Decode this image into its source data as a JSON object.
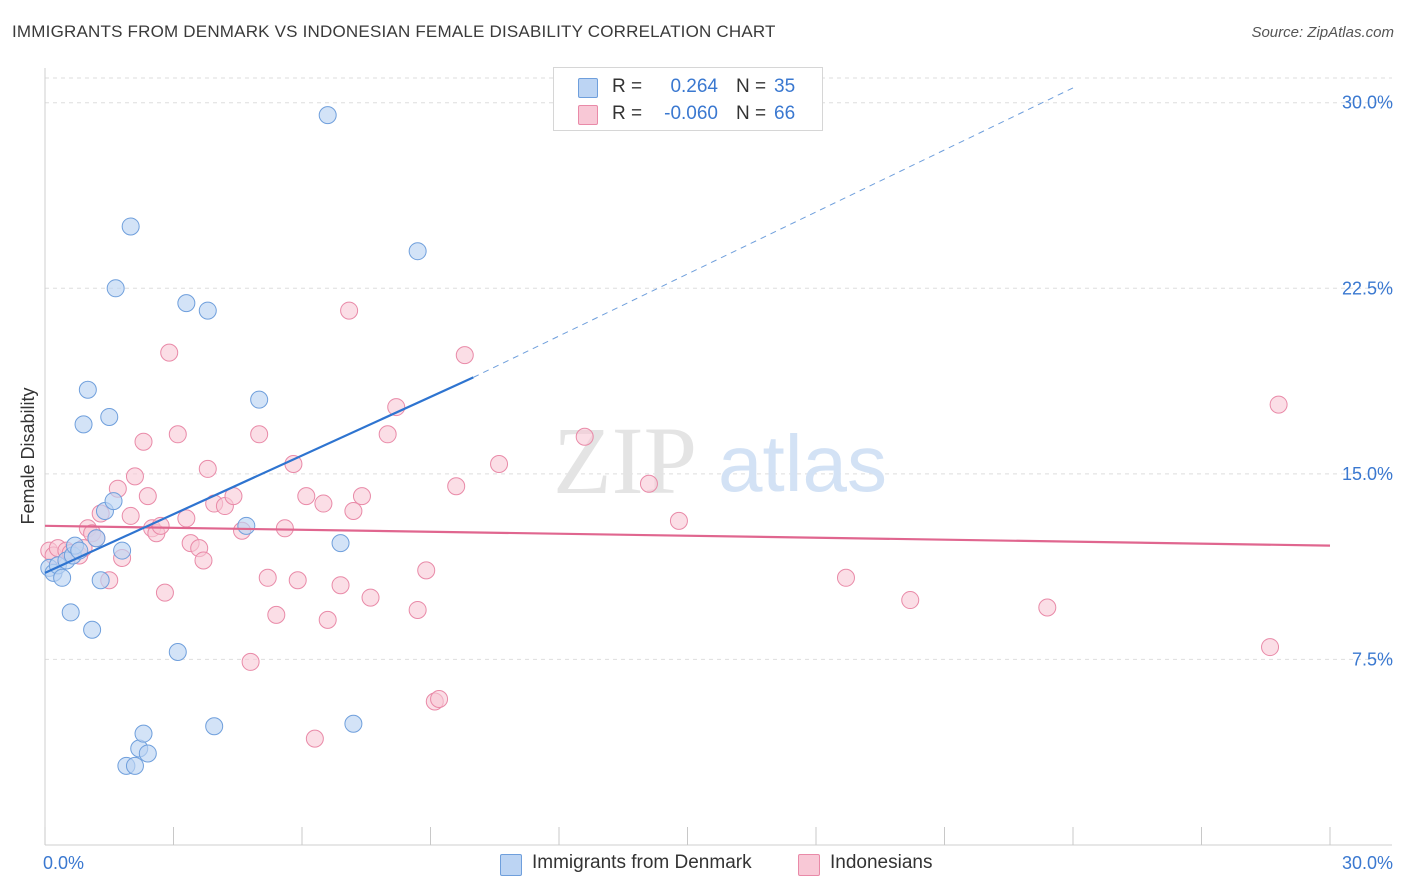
{
  "title": "IMMIGRANTS FROM DENMARK VS INDONESIAN FEMALE DISABILITY CORRELATION CHART",
  "source": "Source: ZipAtlas.com",
  "watermark": {
    "zip": "ZIP",
    "atlas": "atlas"
  },
  "colors": {
    "blue_fill": "#bcd4f3",
    "blue_stroke": "#6f9fdc",
    "blue_line": "#2e74d0",
    "pink_fill": "#f8c8d6",
    "pink_stroke": "#e98aa8",
    "pink_line": "#e0668f",
    "value_text": "#3a78d0",
    "grid": "#dedede"
  },
  "legend": {
    "rows": [
      {
        "r_label": "R =",
        "r_value": "0.264",
        "n_label": "N =",
        "n_value": "35",
        "color": "blue"
      },
      {
        "r_label": "R =",
        "r_value": "-0.060",
        "n_label": "N =",
        "n_value": "66",
        "color": "pink"
      }
    ]
  },
  "bottom_legend": [
    "Immigrants from Denmark",
    "Indonesians"
  ],
  "chart_data": {
    "type": "scatter",
    "title": "IMMIGRANTS FROM DENMARK VS INDONESIAN FEMALE DISABILITY CORRELATION CHART",
    "xlabel": "",
    "ylabel": "Female Disability",
    "xlim": [
      0,
      30
    ],
    "ylim": [
      0,
      31
    ],
    "x_ticks": [
      0,
      3,
      6,
      9,
      12,
      15,
      18,
      21,
      24,
      27,
      30
    ],
    "x_tick_labels": [
      {
        "value": 0,
        "label": "0.0%"
      },
      {
        "value": 30,
        "label": "30.0%"
      }
    ],
    "y_ticks": [
      {
        "value": 7.5,
        "label": "7.5%"
      },
      {
        "value": 15,
        "label": "15.0%"
      },
      {
        "value": 22.5,
        "label": "22.5%"
      },
      {
        "value": 30,
        "label": "30.0%"
      }
    ],
    "grid": true,
    "legend_position": "top-center",
    "series": [
      {
        "name": "Immigrants from Denmark",
        "color": "blue",
        "r": 0.264,
        "n": 35,
        "trend": {
          "x0": 0,
          "y0": 11.0,
          "x1": 10.0,
          "y1": 18.9,
          "dashed_to_x": 24.0,
          "dashed_to_y": 30.6
        },
        "points": [
          [
            0.1,
            11.2
          ],
          [
            0.2,
            11.0
          ],
          [
            0.3,
            11.3
          ],
          [
            0.4,
            10.8
          ],
          [
            0.5,
            11.5
          ],
          [
            0.6,
            9.4
          ],
          [
            0.65,
            11.7
          ],
          [
            0.7,
            12.1
          ],
          [
            0.8,
            11.9
          ],
          [
            0.9,
            17.0
          ],
          [
            1.0,
            18.4
          ],
          [
            1.1,
            8.7
          ],
          [
            1.2,
            12.4
          ],
          [
            1.3,
            10.7
          ],
          [
            1.4,
            13.5
          ],
          [
            1.5,
            17.3
          ],
          [
            1.6,
            13.9
          ],
          [
            1.65,
            22.5
          ],
          [
            1.8,
            11.9
          ],
          [
            1.9,
            3.2
          ],
          [
            2.0,
            25.0
          ],
          [
            2.1,
            3.2
          ],
          [
            2.2,
            3.9
          ],
          [
            2.3,
            4.5
          ],
          [
            2.4,
            3.7
          ],
          [
            3.1,
            7.8
          ],
          [
            3.3,
            21.9
          ],
          [
            3.8,
            21.6
          ],
          [
            3.95,
            4.8
          ],
          [
            4.7,
            12.9
          ],
          [
            5.0,
            18.0
          ],
          [
            6.6,
            29.5
          ],
          [
            6.9,
            12.2
          ],
          [
            7.2,
            4.9
          ],
          [
            8.7,
            24.0
          ]
        ]
      },
      {
        "name": "Indonesians",
        "color": "pink",
        "r": -0.06,
        "n": 66,
        "trend": {
          "x0": 0,
          "y0": 12.9,
          "x1": 30.0,
          "y1": 12.1
        },
        "points": [
          [
            0.1,
            11.9
          ],
          [
            0.2,
            11.7
          ],
          [
            0.3,
            12.0
          ],
          [
            0.5,
            11.9
          ],
          [
            0.6,
            11.8
          ],
          [
            0.8,
            11.7
          ],
          [
            0.9,
            12.0
          ],
          [
            1.0,
            12.8
          ],
          [
            1.1,
            12.6
          ],
          [
            1.3,
            13.4
          ],
          [
            1.5,
            10.7
          ],
          [
            1.7,
            14.4
          ],
          [
            1.8,
            11.6
          ],
          [
            2.0,
            13.3
          ],
          [
            2.1,
            14.9
          ],
          [
            2.3,
            16.3
          ],
          [
            2.4,
            14.1
          ],
          [
            2.5,
            12.8
          ],
          [
            2.6,
            12.6
          ],
          [
            2.8,
            10.2
          ],
          [
            2.9,
            19.9
          ],
          [
            3.1,
            16.6
          ],
          [
            3.3,
            13.2
          ],
          [
            3.4,
            12.2
          ],
          [
            3.6,
            12.0
          ],
          [
            3.7,
            11.5
          ],
          [
            3.8,
            15.2
          ],
          [
            3.95,
            13.8
          ],
          [
            4.2,
            13.7
          ],
          [
            4.4,
            14.1
          ],
          [
            4.6,
            12.7
          ],
          [
            4.8,
            7.4
          ],
          [
            5.0,
            16.6
          ],
          [
            5.2,
            10.8
          ],
          [
            5.4,
            9.3
          ],
          [
            5.6,
            12.8
          ],
          [
            5.8,
            15.4
          ],
          [
            5.9,
            10.7
          ],
          [
            6.1,
            14.1
          ],
          [
            6.5,
            13.8
          ],
          [
            6.6,
            9.1
          ],
          [
            6.9,
            10.5
          ],
          [
            7.1,
            21.6
          ],
          [
            7.2,
            13.5
          ],
          [
            7.4,
            14.1
          ],
          [
            7.6,
            10.0
          ],
          [
            8.0,
            16.6
          ],
          [
            8.2,
            17.7
          ],
          [
            8.7,
            9.5
          ],
          [
            8.9,
            11.1
          ],
          [
            9.1,
            5.8
          ],
          [
            9.2,
            5.9
          ],
          [
            9.6,
            14.5
          ],
          [
            9.8,
            19.8
          ],
          [
            10.6,
            15.4
          ],
          [
            12.6,
            16.5
          ],
          [
            14.1,
            14.6
          ],
          [
            14.8,
            13.1
          ],
          [
            18.7,
            10.8
          ],
          [
            20.2,
            9.9
          ],
          [
            23.4,
            9.6
          ],
          [
            28.6,
            8.0
          ],
          [
            28.8,
            17.8
          ],
          [
            6.3,
            4.3
          ],
          [
            1.2,
            12.4
          ],
          [
            2.7,
            12.9
          ]
        ]
      }
    ]
  }
}
